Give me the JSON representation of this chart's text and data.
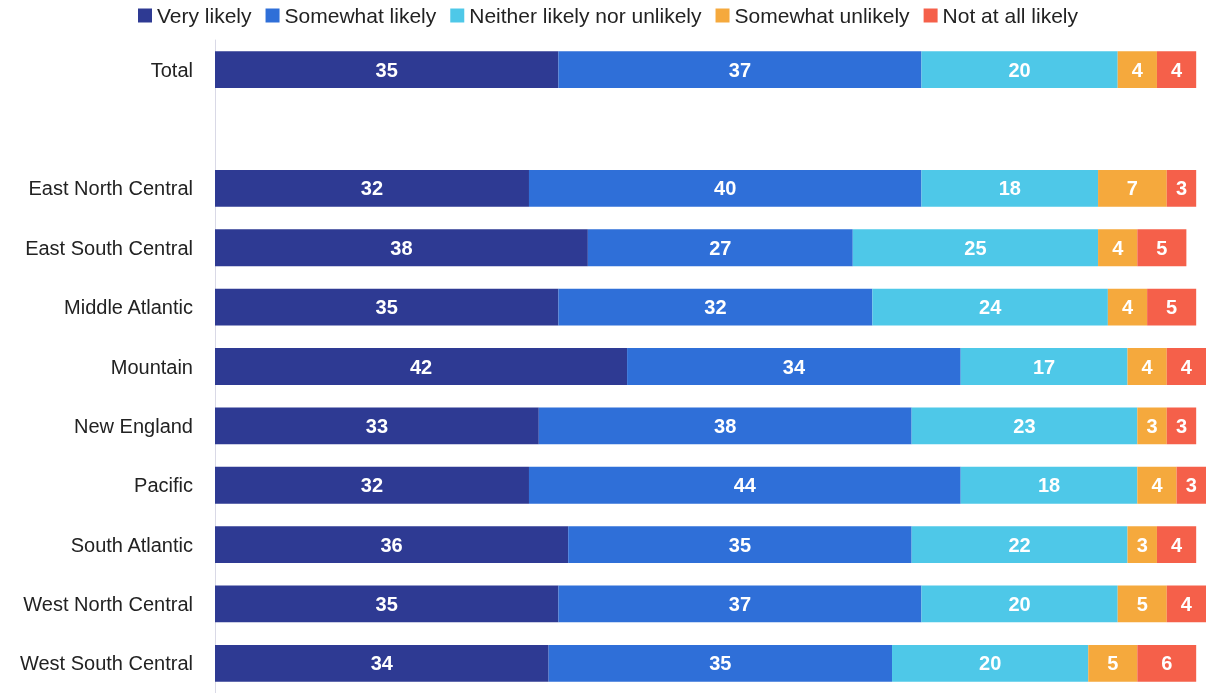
{
  "chart_data": {
    "type": "bar",
    "orientation": "horizontal",
    "stacked": true,
    "data_labels": true,
    "legend": "top",
    "categories": [
      "Total",
      null,
      "East North Central",
      "East South Central",
      "Middle Atlantic",
      "Mountain",
      "New England",
      "Pacific",
      "South Atlantic",
      "West North Central",
      "West South Central"
    ],
    "series": [
      {
        "name": "Very likely",
        "color": "#2e3a93",
        "values": [
          35,
          null,
          32,
          38,
          35,
          42,
          33,
          32,
          36,
          35,
          34
        ]
      },
      {
        "name": "Somewhat likely",
        "color": "#2f6fd8",
        "values": [
          37,
          null,
          40,
          27,
          32,
          34,
          38,
          44,
          35,
          37,
          35
        ]
      },
      {
        "name": "Neither likely nor unlikely",
        "color": "#4ec8e8",
        "values": [
          20,
          null,
          18,
          25,
          24,
          17,
          23,
          18,
          22,
          20,
          20
        ]
      },
      {
        "name": "Somewhat unlikely",
        "color": "#f5a93d",
        "values": [
          4,
          null,
          7,
          4,
          4,
          4,
          3,
          4,
          3,
          5,
          5
        ]
      },
      {
        "name": "Not at all likely",
        "color": "#f5604a",
        "values": [
          4,
          null,
          3,
          5,
          5,
          4,
          3,
          3,
          4,
          4,
          6
        ]
      }
    ]
  }
}
